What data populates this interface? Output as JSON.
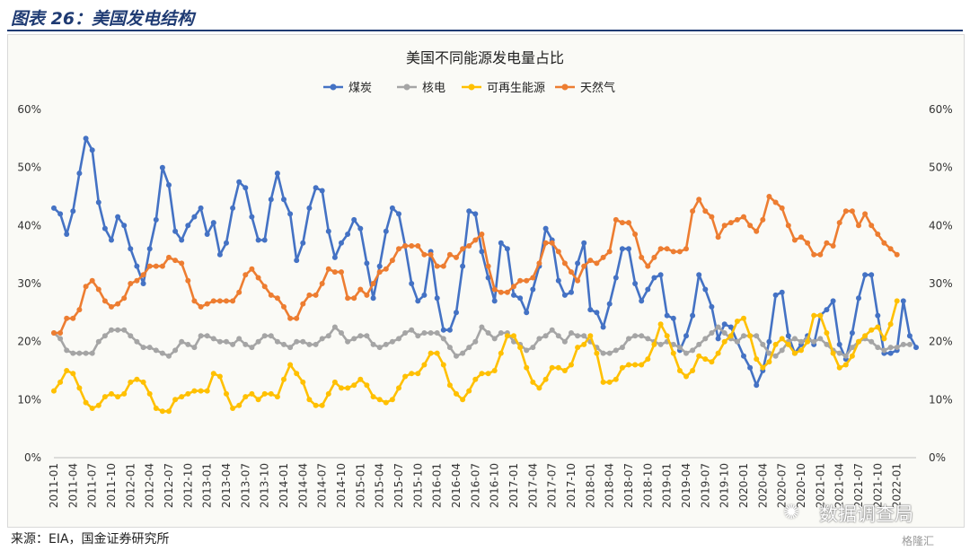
{
  "header": {
    "title": "图表 26：美国发电结构"
  },
  "footer": {
    "source": "来源：EIA，国金证券研究所"
  },
  "watermark": {
    "text": "数据调查局",
    "icon": "wechat-icon",
    "corner": "格隆汇"
  },
  "chart_data": {
    "type": "line",
    "title": "美国不同能源发电量占比",
    "xlabel": "",
    "ylabel": "",
    "ylim": [
      0,
      60
    ],
    "yticks": [
      "0%",
      "10%",
      "20%",
      "30%",
      "40%",
      "50%",
      "60%"
    ],
    "secondary_axis": true,
    "legend_position": "top",
    "grid": false,
    "x_start": "2011-01",
    "x_tick_labels": [
      "2011-01",
      "2011-04",
      "2011-07",
      "2011-10",
      "2012-01",
      "2012-04",
      "2012-07",
      "2012-10",
      "2013-01",
      "2013-04",
      "2013-07",
      "2013-10",
      "2014-01",
      "2014-04",
      "2014-07",
      "2014-10",
      "2015-01",
      "2015-04",
      "2015-07",
      "2015-10",
      "2016-01",
      "2016-04",
      "2016-07",
      "2016-10",
      "2017-01",
      "2017-04",
      "2017-07",
      "2017-10",
      "2018-01",
      "2018-04",
      "2018-07",
      "2018-10",
      "2019-01",
      "2019-04",
      "2019-07",
      "2019-10",
      "2020-01",
      "2020-04",
      "2020-07",
      "2020-10",
      "2021-01",
      "2021-04",
      "2021-07",
      "2021-10",
      "2022-01"
    ],
    "series": [
      {
        "name": "煤炭",
        "color": "#4472c4",
        "values": [
          43,
          42,
          38.5,
          42.5,
          49,
          55,
          53,
          44,
          39.5,
          37.5,
          41.5,
          40,
          36,
          33,
          30,
          36,
          41,
          50,
          47,
          39,
          37.5,
          40,
          41.5,
          43,
          38.5,
          40.5,
          35,
          37,
          43,
          47.5,
          46.5,
          41.5,
          37.5,
          37.5,
          44.5,
          49,
          44.5,
          42,
          34,
          37,
          43,
          46.5,
          46,
          39,
          34.5,
          37,
          38.5,
          41,
          39.5,
          33.5,
          27.5,
          33,
          39,
          43,
          42,
          36.5,
          30,
          27,
          28,
          35.5,
          27.5,
          22,
          22,
          25,
          33,
          42.5,
          42,
          35.5,
          31,
          27,
          37,
          36,
          28,
          27.5,
          25,
          29,
          33,
          39.5,
          37.5,
          30.5,
          28,
          28.5,
          33.5,
          37,
          25.5,
          25,
          22.5,
          26.5,
          31,
          36,
          36,
          30,
          27,
          29,
          31,
          31.5,
          24.5,
          24,
          18.5,
          21,
          24.5,
          31.5,
          29,
          26,
          20.5,
          23,
          22.5,
          20,
          17.5,
          15.5,
          12.5,
          15,
          20,
          28,
          28.5,
          21,
          18,
          19.5,
          21,
          19.5,
          24.5,
          25.5,
          27,
          19.5,
          17,
          21.5,
          27.5,
          31.5,
          31.5,
          24.5,
          18,
          18,
          18.5,
          27,
          21,
          19
        ]
      },
      {
        "name": "核电",
        "color": "#a5a5a5",
        "values": [
          21.5,
          20.5,
          18.5,
          18,
          18,
          18,
          18,
          20,
          21,
          22,
          22,
          22,
          21,
          20,
          19,
          19,
          18.5,
          18,
          17.5,
          18.5,
          20,
          19.5,
          19,
          21,
          21,
          20.5,
          20,
          20,
          19.5,
          20.5,
          19.5,
          19,
          20,
          21,
          21,
          20,
          19.5,
          19,
          20,
          20,
          19.5,
          19.5,
          20.5,
          21,
          22.5,
          21.5,
          20,
          20.5,
          21,
          21,
          19.5,
          19,
          19.5,
          20,
          20.5,
          21.5,
          22,
          21,
          21.5,
          21.5,
          21.5,
          20.5,
          19,
          17.5,
          18,
          19,
          20,
          22.5,
          21.5,
          20.5,
          21.5,
          21.5,
          20,
          19.5,
          18.5,
          19,
          20.5,
          21,
          22,
          21,
          20,
          21.5,
          21,
          21,
          20,
          19,
          18,
          18,
          18.5,
          19,
          20.5,
          21,
          21,
          20.5,
          20,
          19.5,
          20,
          19.5,
          19,
          18,
          18.5,
          19.5,
          20.5,
          21.5,
          22.5,
          21.5,
          20.5,
          20,
          21,
          21,
          21,
          19.5,
          18,
          17.5,
          18.5,
          20,
          20.5,
          20,
          20.5,
          20,
          20.5,
          19.5,
          18.5,
          18,
          17.5,
          19,
          20,
          20.5,
          20,
          19,
          18.5,
          19,
          19,
          19.5,
          19.5
        ]
      },
      {
        "name": "可再生能源",
        "color": "#ffc000",
        "values": [
          11.5,
          13,
          15,
          14.5,
          12,
          9.5,
          8.5,
          9,
          10.5,
          11,
          10.5,
          11,
          13,
          13.5,
          13,
          11,
          8.5,
          8,
          8,
          10,
          10.5,
          11,
          11.5,
          11.5,
          11.5,
          14.5,
          14,
          11,
          8.5,
          9,
          10.5,
          11,
          10,
          11,
          11,
          10.5,
          13.5,
          16,
          14.5,
          13,
          10,
          9,
          9,
          11,
          13,
          12,
          12,
          12.5,
          13.5,
          12.5,
          10.5,
          10,
          9.5,
          10,
          12,
          14,
          14.5,
          14.5,
          16,
          18,
          18,
          16,
          12.5,
          11,
          10,
          11.5,
          13.5,
          14.5,
          14.5,
          15,
          18,
          21,
          21,
          19,
          15.5,
          13,
          12,
          13.5,
          15.5,
          15.5,
          15,
          16,
          19,
          19.5,
          21,
          18,
          13,
          13,
          13.5,
          15.5,
          16,
          16,
          16,
          17,
          19.5,
          23,
          21,
          18,
          15,
          14,
          15,
          17.5,
          17,
          16.5,
          18,
          20,
          21,
          23.5,
          24,
          21,
          17,
          15.5,
          16.5,
          19.5,
          20.5,
          19.5,
          18,
          18.5,
          20,
          24.5,
          24.5,
          21.5,
          18,
          15.5,
          16,
          17.5,
          20,
          21,
          22,
          22.5,
          20.5,
          23,
          27
        ]
      },
      {
        "name": "天然气",
        "color": "#ed7d31",
        "values": [
          21.5,
          21.5,
          24,
          24,
          25.5,
          29.5,
          30.5,
          29,
          27,
          26,
          26.5,
          27.5,
          30,
          30.5,
          31.5,
          33,
          33,
          33,
          34.5,
          34,
          33.5,
          30.5,
          27,
          26,
          26.5,
          27,
          27,
          27,
          27,
          28.5,
          31.5,
          32.5,
          31,
          29.5,
          28,
          27.5,
          26,
          24,
          24,
          26.5,
          28,
          28,
          30,
          32.5,
          32,
          32,
          27.5,
          27.5,
          29,
          28,
          30,
          32,
          32.5,
          34,
          36,
          36.5,
          36.5,
          36.5,
          35,
          35,
          33,
          33,
          35,
          34.5,
          36,
          36.5,
          37.5,
          38.5,
          33,
          29,
          28.5,
          28.5,
          29.5,
          30.5,
          30.5,
          31,
          33.5,
          37,
          37,
          35.5,
          33.5,
          32,
          30.5,
          33,
          34,
          33.5,
          34.5,
          35.5,
          41,
          40.5,
          40.5,
          38.5,
          34.5,
          33,
          34.5,
          36,
          36,
          35.5,
          35.5,
          36,
          42.5,
          44.5,
          42.5,
          41.5,
          38,
          40,
          40.5,
          41,
          41.5,
          40,
          39,
          41,
          45,
          44,
          43,
          40,
          37.5,
          38,
          37,
          35,
          35,
          37,
          36.5,
          40.5,
          42.5,
          42.5,
          40,
          42,
          40,
          38.5,
          37,
          36,
          35
        ]
      }
    ]
  }
}
